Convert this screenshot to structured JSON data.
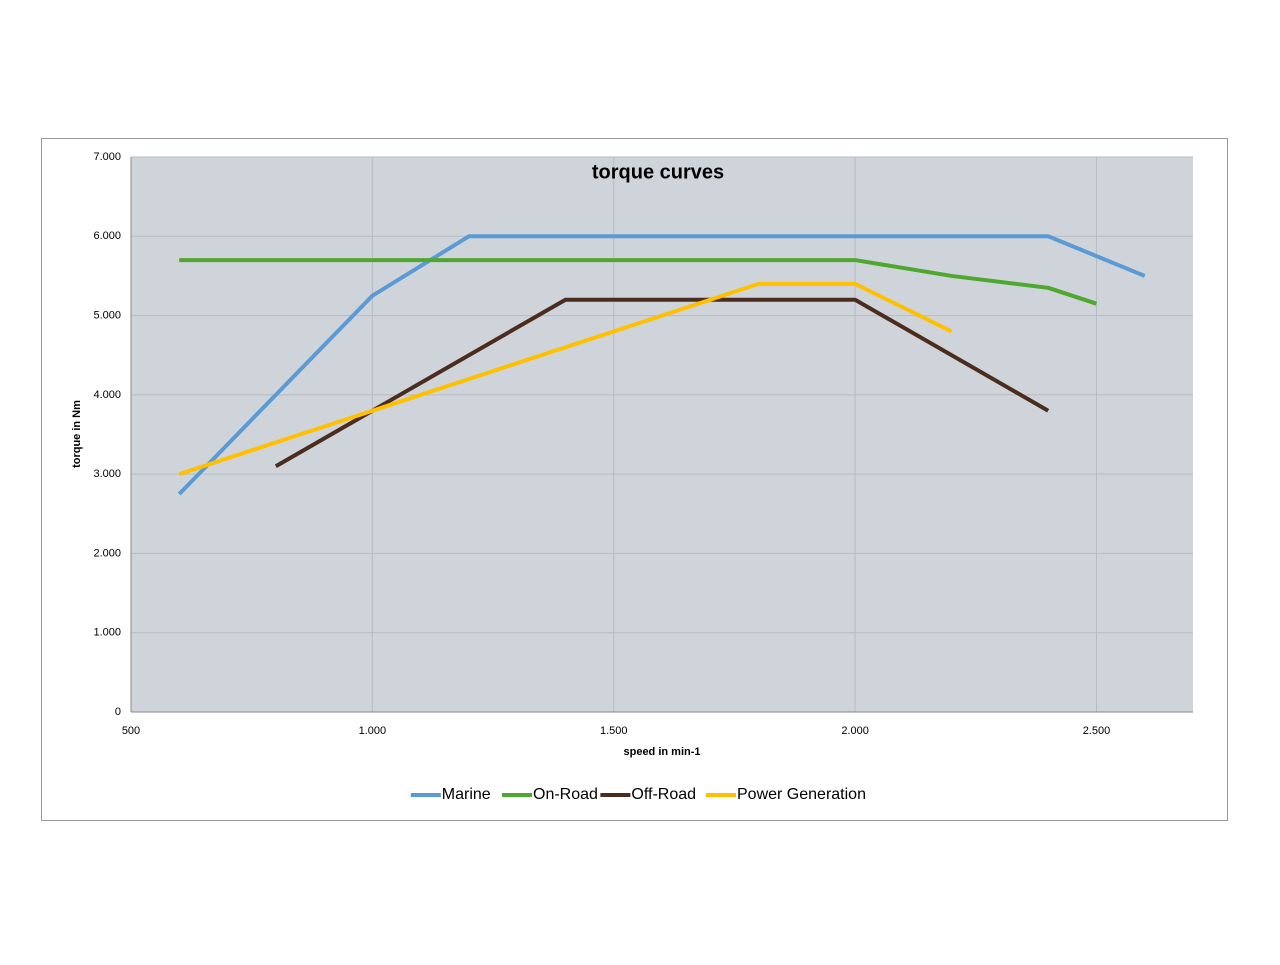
{
  "chart_data": {
    "type": "line",
    "title": "torque curves",
    "x_label": "speed in min-1",
    "y_label": "torque in Nm",
    "xlim": [
      500,
      2700
    ],
    "ylim": [
      0,
      7000
    ],
    "xticks": [
      500,
      {
        "value": 1000,
        "label": "1.000"
      },
      {
        "value": 1500,
        "label": "1.500"
      },
      {
        "value": 2000,
        "label": "2.000"
      },
      {
        "value": 2500,
        "label": "2.500"
      }
    ],
    "yticks": [
      0,
      {
        "value": 1000,
        "label": "1.000"
      },
      {
        "value": 2000,
        "label": "2.000"
      },
      {
        "value": 3000,
        "label": "3.000"
      },
      {
        "value": 4000,
        "label": "4.000"
      },
      {
        "value": 5000,
        "label": "5.000"
      },
      {
        "value": 6000,
        "label": "6.000"
      },
      {
        "value": 7000,
        "label": "7.000"
      }
    ],
    "grid": true,
    "legend": "bottom",
    "series": [
      {
        "name": "Marine",
        "color": "#5b9bd5",
        "x": [
          600,
          800,
          1000,
          1200,
          2400,
          2600
        ],
        "values": [
          2750,
          4000,
          5250,
          6000,
          6000,
          5500
        ]
      },
      {
        "name": "On-Road",
        "color": "#4ea72e",
        "x": [
          600,
          2000,
          2200,
          2400,
          2500
        ],
        "values": [
          5700,
          5700,
          5500,
          5350,
          5150
        ]
      },
      {
        "name": "Off-Road",
        "color": "#4b2d1f",
        "x": [
          800,
          1000,
          1400,
          2000,
          2400
        ],
        "values": [
          3100,
          3800,
          5200,
          5200,
          3800
        ]
      },
      {
        "name": "Power Generation",
        "color": "#ffc000",
        "x": [
          600,
          1000,
          1400,
          1800,
          2000,
          2200
        ],
        "values": [
          3000,
          3800,
          4600,
          5400,
          5400,
          4800
        ]
      }
    ]
  }
}
